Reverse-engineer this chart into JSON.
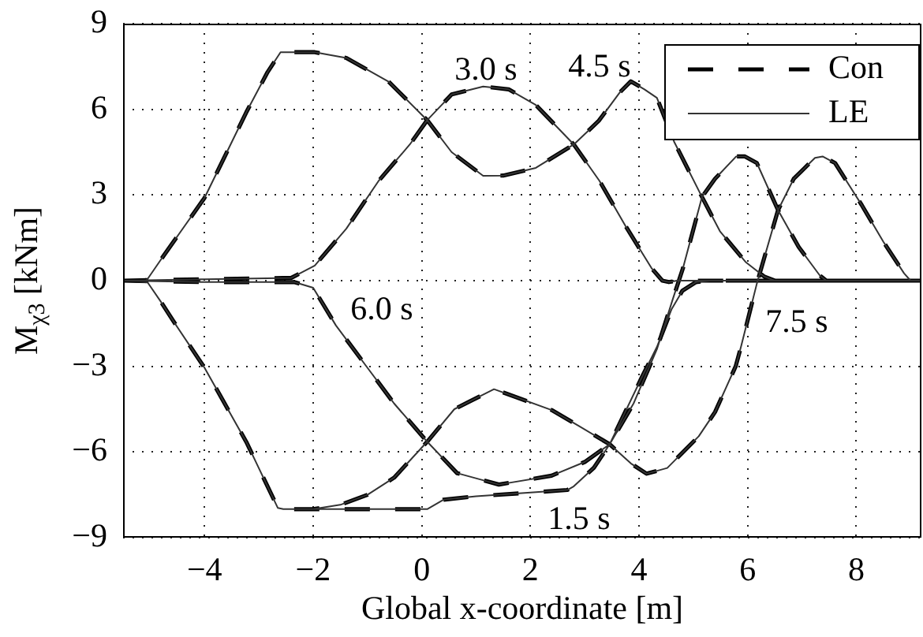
{
  "chart_data": {
    "type": "line",
    "xlabel": "Global x-coordinate [m]",
    "ylabel": "M$_{χ3}$ [kNm]",
    "xlim": [
      -5.5,
      9.2
    ],
    "ylim": [
      -9,
      9
    ],
    "xticks": [
      {
        "value": -4,
        "label": "−4"
      },
      {
        "value": -2,
        "label": "−2"
      },
      0,
      2,
      4,
      6,
      8
    ],
    "yticks": [
      {
        "value": -9,
        "label": "−9"
      },
      {
        "value": -6,
        "label": "−6"
      },
      {
        "value": -3,
        "label": "−3"
      },
      0,
      3,
      6,
      9
    ],
    "grid": true,
    "legend": "top right",
    "annotations": [
      "1.5 s",
      "3.0 s",
      "4.5 s",
      "6.0 s",
      "7.5 s"
    ],
    "series": [
      {
        "name": "Con",
        "color": "#000000",
        "line_style": "dashed",
        "x": [
          -5.5,
          -5.07,
          -4.8,
          -4.58,
          -4.0,
          -3.23,
          -2.65,
          -2.55,
          -1.0,
          0.1,
          0.4,
          1.0,
          2.0,
          2.68,
          2.8,
          3.17,
          3.46,
          4.04,
          4.33,
          4.6,
          4.8,
          5.05,
          5.3,
          9.2,
          null,
          -5.5,
          -4.0,
          -2.4,
          -1.97,
          -1.39,
          -0.8,
          -0.22,
          0.1,
          0.55,
          1.13,
          1.6,
          2.1,
          2.8,
          3.27,
          3.75,
          4.23,
          4.43,
          4.55,
          4.7,
          9.2,
          null,
          -5.5,
          -5.07,
          -4.78,
          -4.0,
          -3.23,
          -2.84,
          -2.6,
          -1.97,
          -1.39,
          -0.61,
          0.1,
          0.55,
          1.13,
          1.5,
          2.1,
          2.8,
          3.26,
          3.65,
          3.85,
          4.1,
          4.33,
          4.65,
          5.16,
          5.49,
          5.97,
          6.3,
          6.5,
          9.2,
          null,
          -5.5,
          -4.0,
          -2.35,
          -2.0,
          -1.58,
          -1.0,
          -0.51,
          0.1,
          0.65,
          1.42,
          2.39,
          3.0,
          3.46,
          3.9,
          4.33,
          4.62,
          4.81,
          5.16,
          5.4,
          5.79,
          5.95,
          6.17,
          6.56,
          6.94,
          7.33,
          7.45,
          9.2,
          null,
          -5.5,
          -5.07,
          -4.8,
          -4.58,
          -4.0,
          -3.23,
          -2.65,
          -2.55,
          -2.0,
          -1.5,
          -1.0,
          -0.51,
          0.1,
          0.6,
          1.33,
          2.39,
          2.9,
          3.46,
          3.85,
          4.14,
          4.52,
          5.1,
          5.4,
          5.78,
          5.88,
          6.17,
          6.56,
          6.85,
          7.24,
          7.38,
          7.61,
          8.1,
          8.5,
          8.88,
          9.0,
          9.2
        ],
        "values": [
          0,
          0,
          -0.75,
          -1.4,
          -3.05,
          -5.65,
          -7.96,
          -8.0,
          -8.0,
          -8.0,
          -7.67,
          -7.55,
          -7.42,
          -7.33,
          -7.2,
          -6.55,
          -5.73,
          -3.43,
          -2.32,
          -1.0,
          -0.35,
          -0.05,
          0,
          0,
          null,
          0,
          0.05,
          0.1,
          0.53,
          1.82,
          3.48,
          4.77,
          5.62,
          6.52,
          6.8,
          6.7,
          6.15,
          4.77,
          3.5,
          1.92,
          0.44,
          0,
          -0.05,
          0,
          0,
          null,
          0,
          0,
          0.8,
          2.9,
          5.9,
          7.3,
          8.0,
          8.0,
          7.8,
          6.97,
          5.62,
          4.5,
          3.67,
          3.68,
          3.95,
          4.77,
          5.6,
          6.6,
          6.98,
          6.7,
          6.4,
          4.85,
          2.93,
          1.73,
          0.64,
          0.15,
          0,
          0,
          null,
          0,
          -0.05,
          -0.05,
          -0.25,
          -1.57,
          -3.05,
          -4.3,
          -5.64,
          -6.74,
          -7.14,
          -6.83,
          -6.35,
          -5.73,
          -4.3,
          -2.4,
          -0.66,
          0.44,
          2.93,
          3.57,
          4.35,
          4.35,
          4.12,
          2.47,
          1.18,
          0.18,
          0,
          0,
          null,
          0,
          0,
          -0.75,
          -1.4,
          -3.05,
          -5.65,
          -7.96,
          -8.0,
          -8.0,
          -7.85,
          -7.5,
          -6.9,
          -5.64,
          -4.5,
          -3.8,
          -4.53,
          -5.1,
          -5.73,
          -6.4,
          -6.76,
          -6.56,
          -5.45,
          -4.6,
          -3.0,
          -2.3,
          -0.1,
          2.47,
          3.57,
          4.3,
          4.35,
          4.12,
          2.65,
          1.36,
          0.26,
          0,
          0
        ]
      },
      {
        "name": "LE",
        "color": "#333333",
        "line_style": "solid",
        "x": [
          -5.5,
          -5.07,
          -4.8,
          -4.58,
          -4.0,
          -3.23,
          -2.65,
          -2.55,
          -1.0,
          0.1,
          0.4,
          1.0,
          2.0,
          2.68,
          2.8,
          3.17,
          3.46,
          4.04,
          4.33,
          4.6,
          4.8,
          5.05,
          5.3,
          9.2,
          null,
          -5.5,
          -4.0,
          -2.4,
          -1.97,
          -1.39,
          -0.8,
          -0.22,
          0.1,
          0.55,
          1.13,
          1.6,
          2.1,
          2.8,
          3.27,
          3.75,
          4.23,
          4.43,
          4.55,
          4.7,
          9.2,
          null,
          -5.5,
          -5.07,
          -4.78,
          -4.0,
          -3.23,
          -2.84,
          -2.6,
          -1.97,
          -1.39,
          -0.61,
          0.1,
          0.55,
          1.13,
          1.5,
          2.1,
          2.8,
          3.26,
          3.65,
          3.85,
          4.1,
          4.33,
          4.65,
          5.16,
          5.49,
          5.97,
          6.3,
          6.5,
          9.2,
          null,
          -5.5,
          -4.0,
          -2.35,
          -2.0,
          -1.58,
          -1.0,
          -0.51,
          0.1,
          0.65,
          1.42,
          2.39,
          3.0,
          3.46,
          3.9,
          4.33,
          4.62,
          4.81,
          5.16,
          5.4,
          5.79,
          5.95,
          6.17,
          6.56,
          6.94,
          7.33,
          7.45,
          9.2,
          null,
          -5.5,
          -5.07,
          -4.8,
          -4.58,
          -4.0,
          -3.23,
          -2.65,
          -2.55,
          -2.0,
          -1.5,
          -1.0,
          -0.51,
          0.1,
          0.6,
          1.33,
          2.39,
          2.9,
          3.46,
          3.85,
          4.14,
          4.52,
          5.1,
          5.4,
          5.78,
          5.88,
          6.17,
          6.56,
          6.85,
          7.24,
          7.38,
          7.61,
          8.1,
          8.5,
          8.88,
          9.0,
          9.2
        ],
        "values": [
          0,
          0,
          -0.75,
          -1.4,
          -3.05,
          -5.65,
          -7.96,
          -8.0,
          -8.0,
          -8.0,
          -7.67,
          -7.55,
          -7.42,
          -7.33,
          -7.2,
          -6.55,
          -5.73,
          -3.43,
          -2.32,
          -1.0,
          -0.35,
          -0.05,
          0,
          0,
          null,
          0,
          0.05,
          0.1,
          0.53,
          1.82,
          3.48,
          4.77,
          5.62,
          6.52,
          6.8,
          6.7,
          6.15,
          4.77,
          3.5,
          1.92,
          0.44,
          0,
          -0.05,
          0,
          0,
          null,
          0,
          0,
          0.8,
          2.9,
          5.9,
          7.3,
          8.0,
          8.0,
          7.8,
          6.97,
          5.62,
          4.5,
          3.67,
          3.68,
          3.95,
          4.77,
          5.6,
          6.6,
          6.98,
          6.7,
          6.4,
          4.85,
          2.93,
          1.73,
          0.64,
          0.15,
          0,
          0,
          null,
          0,
          -0.05,
          -0.05,
          -0.25,
          -1.57,
          -3.05,
          -4.3,
          -5.64,
          -6.74,
          -7.14,
          -6.83,
          -6.35,
          -5.73,
          -4.3,
          -2.4,
          -0.66,
          0.44,
          2.93,
          3.57,
          4.35,
          4.35,
          4.12,
          2.47,
          1.18,
          0.18,
          0,
          0,
          null,
          0,
          0,
          -0.75,
          -1.4,
          -3.05,
          -5.65,
          -7.96,
          -8.0,
          -8.0,
          -7.85,
          -7.5,
          -6.9,
          -5.64,
          -4.5,
          -3.8,
          -4.53,
          -5.1,
          -5.73,
          -6.4,
          -6.76,
          -6.56,
          -5.45,
          -4.6,
          -3.0,
          -2.3,
          -0.1,
          2.47,
          3.57,
          4.3,
          4.35,
          4.12,
          2.65,
          1.36,
          0.26,
          0,
          0
        ]
      }
    ]
  }
}
